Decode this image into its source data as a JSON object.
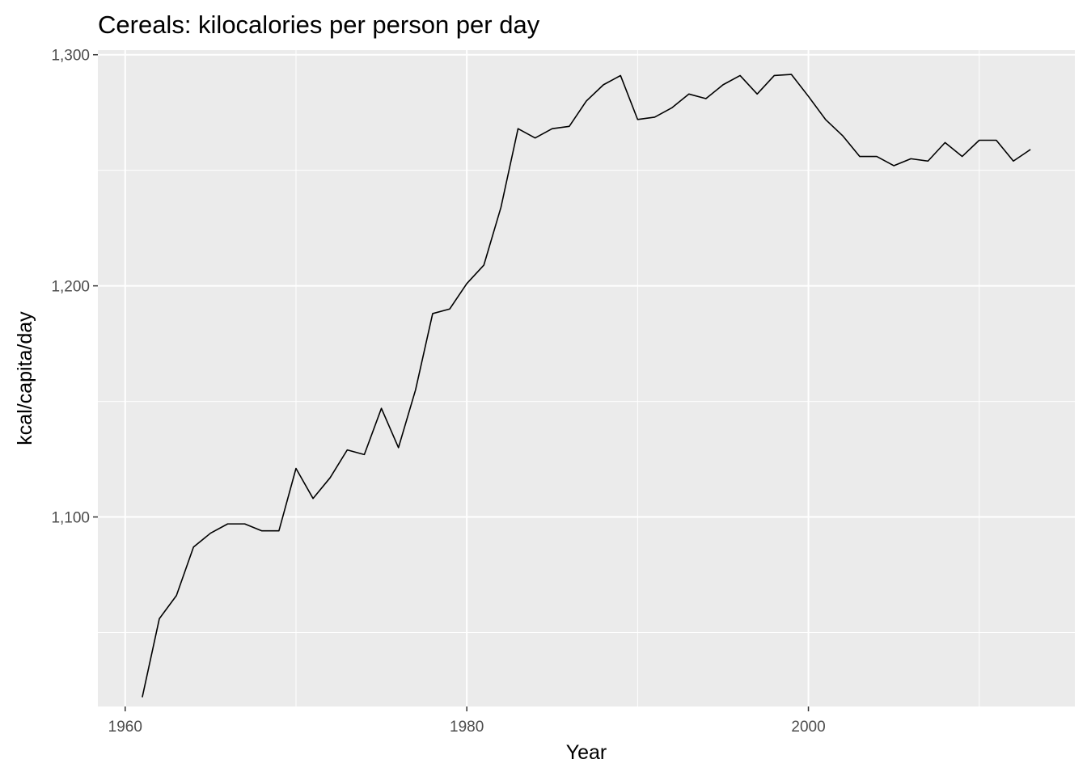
{
  "chart_data": {
    "type": "line",
    "title": "Cereals: kilocalories per person per day",
    "xlabel": "Year",
    "ylabel": "kcal/capita/day",
    "xlim": [
      1958.4,
      2015.6
    ],
    "ylim": [
      1018,
      1302
    ],
    "x_ticks": [
      {
        "value": 1960,
        "label": "1960"
      },
      {
        "value": 1980,
        "label": "1980"
      },
      {
        "value": 2000,
        "label": "2000"
      }
    ],
    "x_minor": [
      1970,
      1990,
      2010
    ],
    "y_ticks": [
      {
        "value": 1100,
        "label": "1,100"
      },
      {
        "value": 1200,
        "label": "1,200"
      },
      {
        "value": 1300,
        "label": "1,300"
      }
    ],
    "y_minor": [
      1050,
      1150,
      1250
    ],
    "grid": true,
    "panel_color": "#ebebeb",
    "grid_color": "#ffffff",
    "line_color": "#000000",
    "series": [
      {
        "x": [
          1961,
          1962,
          1963,
          1964,
          1965,
          1966,
          1967,
          1968,
          1969,
          1970,
          1971,
          1972,
          1973,
          1974,
          1975,
          1976,
          1977,
          1978,
          1979,
          1980,
          1981,
          1982,
          1983,
          1984,
          1985,
          1986,
          1987,
          1988,
          1989,
          1990,
          1991,
          1992,
          1993,
          1994,
          1995,
          1996,
          1997,
          1998,
          1999,
          2000,
          2001,
          2002,
          2003,
          2004,
          2005,
          2006,
          2007,
          2008,
          2009,
          2010,
          2011,
          2012,
          2013
        ],
        "y": [
          1022,
          1056,
          1066,
          1087,
          1093,
          1097,
          1097,
          1094,
          1094,
          1121,
          1108,
          1117,
          1129,
          1127,
          1147,
          1130,
          1155,
          1188,
          1190,
          1201,
          1209,
          1234,
          1268,
          1264,
          1268,
          1269,
          1280,
          1287,
          1291,
          1272,
          1273,
          1277,
          1283,
          1281,
          1287,
          1291,
          1283,
          1291,
          1291.5,
          1282,
          1272,
          1265,
          1256,
          1256,
          1252,
          1255,
          1254,
          1262,
          1256,
          1263,
          1263,
          1254,
          1259
        ]
      }
    ]
  }
}
